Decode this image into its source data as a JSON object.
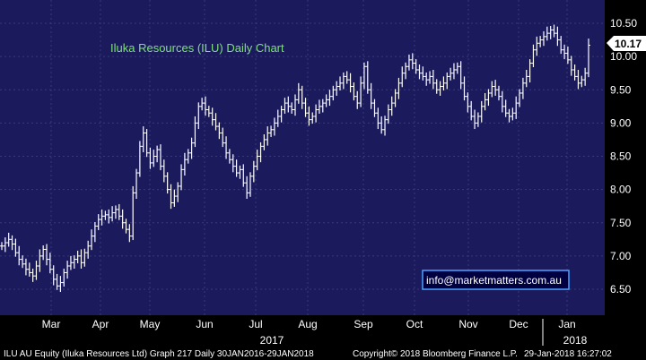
{
  "colors": {
    "background": "#000000",
    "plot_area": "#1a1a5c",
    "grid": "#3a3a7a",
    "bars": "#ffffff",
    "title": "#7fe07a",
    "email_border": "#4aa3ff",
    "email_fill": "#000040"
  },
  "chart_data": {
    "type": "ohlc",
    "title": "Iluka Resources (ILU) Daily Chart",
    "y_ticks": [
      "10.50",
      "10.00",
      "9.50",
      "9.00",
      "8.50",
      "8.00",
      "7.50",
      "7.00",
      "6.50"
    ],
    "ylim": [
      6.0,
      10.75
    ],
    "x_months": [
      "Mar",
      "Apr",
      "May",
      "Jun",
      "Jul",
      "Aug",
      "Sep",
      "Oct",
      "Nov",
      "Dec",
      "Jan"
    ],
    "x_years": [
      "2017",
      "2018"
    ],
    "last_price": "10.17",
    "grid": true,
    "closes": [
      7.15,
      7.2,
      7.25,
      7.18,
      7.05,
      6.95,
      6.88,
      6.8,
      6.75,
      6.7,
      6.85,
      7.0,
      7.1,
      6.95,
      6.8,
      6.65,
      6.55,
      6.6,
      6.75,
      6.85,
      6.9,
      6.95,
      7.0,
      6.9,
      7.05,
      7.15,
      7.3,
      7.45,
      7.55,
      7.6,
      7.62,
      7.58,
      7.65,
      7.7,
      7.6,
      7.5,
      7.4,
      7.3,
      7.95,
      8.25,
      8.65,
      8.85,
      8.55,
      8.4,
      8.5,
      8.6,
      8.35,
      8.2,
      8.0,
      7.8,
      7.9,
      8.05,
      8.3,
      8.45,
      8.55,
      8.7,
      9.0,
      9.25,
      9.3,
      9.2,
      9.15,
      9.05,
      8.95,
      8.85,
      8.7,
      8.55,
      8.45,
      8.35,
      8.25,
      8.3,
      8.1,
      7.95,
      8.2,
      8.35,
      8.5,
      8.65,
      8.75,
      8.85,
      8.9,
      9.0,
      9.1,
      9.2,
      9.3,
      9.25,
      9.2,
      9.35,
      9.5,
      9.3,
      9.15,
      9.05,
      9.1,
      9.2,
      9.25,
      9.3,
      9.35,
      9.4,
      9.5,
      9.55,
      9.6,
      9.7,
      9.65,
      9.55,
      9.4,
      9.3,
      9.6,
      9.85,
      9.5,
      9.3,
      9.15,
      9.0,
      8.9,
      9.05,
      9.2,
      9.3,
      9.45,
      9.6,
      9.75,
      9.85,
      9.95,
      9.9,
      9.8,
      9.75,
      9.7,
      9.65,
      9.7,
      9.6,
      9.5,
      9.55,
      9.6,
      9.7,
      9.75,
      9.8,
      9.85,
      9.6,
      9.4,
      9.25,
      9.1,
      9.0,
      9.1,
      9.25,
      9.35,
      9.45,
      9.55,
      9.5,
      9.4,
      9.25,
      9.15,
      9.1,
      9.15,
      9.3,
      9.45,
      9.6,
      9.7,
      9.9,
      10.1,
      10.2,
      10.25,
      10.3,
      10.35,
      10.4,
      10.35,
      10.25,
      10.1,
      10.05,
      9.95,
      9.8,
      9.7,
      9.6,
      9.65,
      9.75,
      10.17
    ]
  },
  "footer": {
    "left": "ILU AU Equity (Iluka Resources Ltd) Graph 217  Daily 30JAN2016-29JAN2018",
    "middle": "Copyright© 2018 Bloomberg Finance L.P.",
    "right": "29-Jan-2018 16:27:02"
  },
  "email": "info@marketmatters.com.au"
}
